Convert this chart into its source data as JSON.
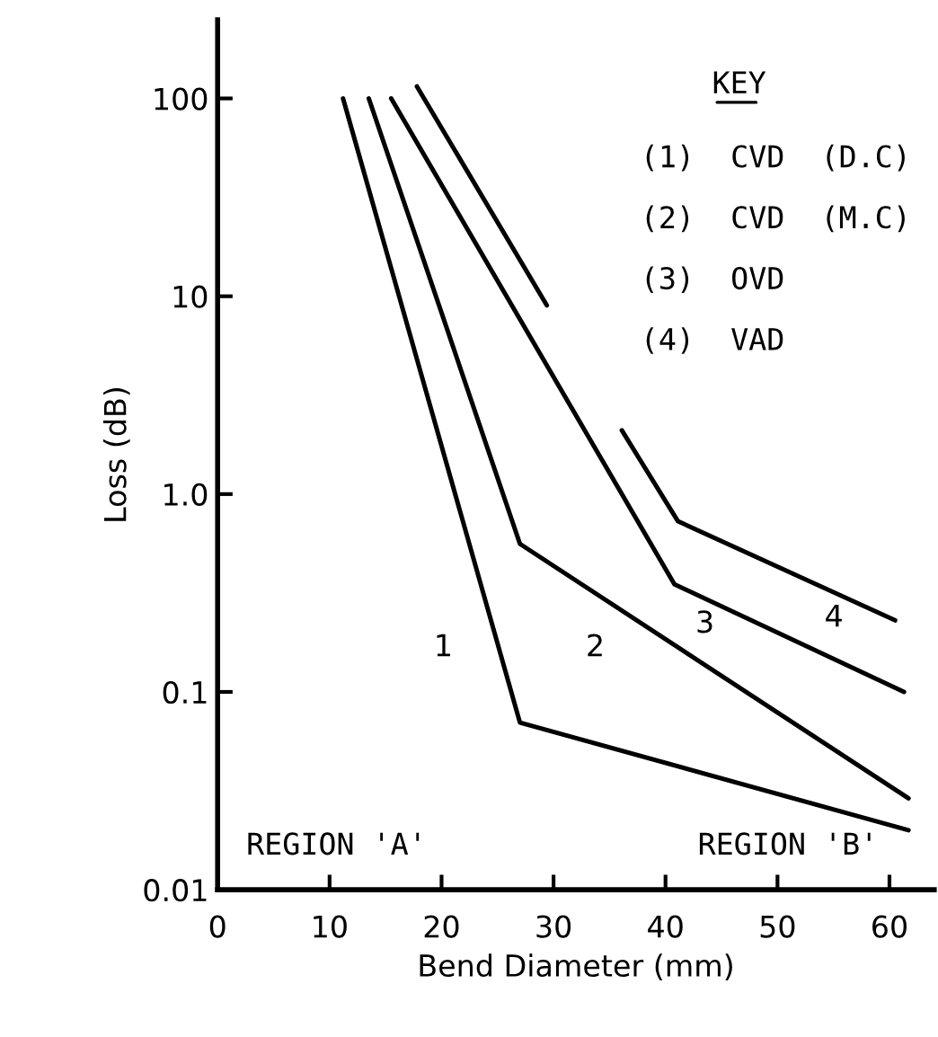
{
  "chart_data": {
    "type": "line",
    "xlabel": "Bend Diameter (mm)",
    "ylabel": "Loss (dB)",
    "series": [
      {
        "name": "1",
        "color": "#000000",
        "x": [
          11.2,
          27,
          61.7
        ],
        "values": [
          100,
          0.07,
          0.02
        ]
      },
      {
        "name": "2",
        "color": "#000000",
        "x": [
          13.5,
          27,
          61.7
        ],
        "values": [
          100,
          0.56,
          0.029
        ]
      },
      {
        "name": "3",
        "color": "#000000",
        "x": [
          15.5,
          40.8,
          61.3
        ],
        "values": [
          100,
          0.35,
          0.1
        ]
      },
      {
        "name": "4",
        "color": "#000000",
        "x": [
          17.8,
          29.4,
          33,
          36.1,
          41.1,
          60.5
        ],
        "values": [
          115,
          9,
          null,
          2.1,
          0.73,
          0.23
        ]
      }
    ],
    "annotations": [
      "KEY",
      "(1)  CVD  (D.C)",
      "(2)  CVD  (M.C)",
      "(3)  OVD",
      "(4)  VAD",
      "REGION 'A'",
      "REGION 'B'"
    ],
    "log": "y",
    "xlim": [
      0,
      64
    ],
    "ylim": [
      0.01,
      250
    ],
    "xticks": [
      0,
      10,
      20,
      30,
      40,
      50,
      60
    ],
    "yticks": [
      {
        "value": 0.01,
        "label": "0.01"
      },
      {
        "value": 0.1,
        "label": "0.1"
      },
      {
        "value": 1,
        "label": "1.0"
      },
      {
        "value": 10,
        "label": "10"
      },
      {
        "value": 100,
        "label": "100"
      }
    ],
    "grid": false,
    "legend": false,
    "marker": "none",
    "line_style": "solid"
  }
}
